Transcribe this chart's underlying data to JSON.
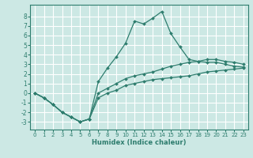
{
  "xlabel": "Humidex (Indice chaleur)",
  "background_color": "#cce8e4",
  "grid_color": "#ffffff",
  "line_color": "#2e7d6e",
  "xlim": [
    -0.5,
    23.5
  ],
  "ylim": [
    -3.8,
    9.2
  ],
  "xticks": [
    0,
    1,
    2,
    3,
    4,
    5,
    6,
    7,
    8,
    9,
    10,
    11,
    12,
    13,
    14,
    15,
    16,
    17,
    18,
    19,
    20,
    21,
    22,
    23
  ],
  "yticks": [
    -3,
    -2,
    -1,
    0,
    1,
    2,
    3,
    4,
    5,
    6,
    7,
    8
  ],
  "line_max_x": [
    0,
    1,
    2,
    3,
    4,
    5,
    6,
    7,
    8,
    9,
    10,
    11,
    12,
    13,
    14,
    15,
    16,
    17,
    18,
    19,
    20,
    21,
    22,
    23
  ],
  "line_max_y": [
    0.0,
    -0.5,
    -1.2,
    -2.0,
    -2.5,
    -3.0,
    -2.7,
    1.2,
    2.6,
    3.8,
    5.2,
    7.5,
    7.2,
    7.8,
    8.5,
    6.2,
    4.8,
    3.5,
    3.3,
    3.2,
    3.2,
    3.0,
    2.8,
    2.7
  ],
  "line_mid_x": [
    0,
    1,
    2,
    3,
    4,
    5,
    6,
    7,
    8,
    9,
    10,
    11,
    12,
    13,
    14,
    15,
    16,
    17,
    18,
    19,
    20,
    21,
    22,
    23
  ],
  "line_mid_y": [
    0.0,
    -0.5,
    -1.2,
    -2.0,
    -2.5,
    -3.0,
    -2.7,
    0.0,
    0.5,
    1.0,
    1.5,
    1.8,
    2.0,
    2.2,
    2.5,
    2.8,
    3.0,
    3.2,
    3.3,
    3.5,
    3.5,
    3.3,
    3.2,
    3.0
  ],
  "line_min_x": [
    0,
    1,
    2,
    3,
    4,
    5,
    6,
    7,
    8,
    9,
    10,
    11,
    12,
    13,
    14,
    15,
    16,
    17,
    18,
    19,
    20,
    21,
    22,
    23
  ],
  "line_min_y": [
    0.0,
    -0.5,
    -1.2,
    -2.0,
    -2.5,
    -3.0,
    -2.7,
    -0.5,
    0.0,
    0.3,
    0.8,
    1.0,
    1.2,
    1.4,
    1.5,
    1.6,
    1.7,
    1.8,
    2.0,
    2.2,
    2.3,
    2.4,
    2.5,
    2.6
  ],
  "xlabel_fontsize": 6,
  "tick_fontsize": 5,
  "linewidth": 0.9,
  "markersize": 2.0
}
